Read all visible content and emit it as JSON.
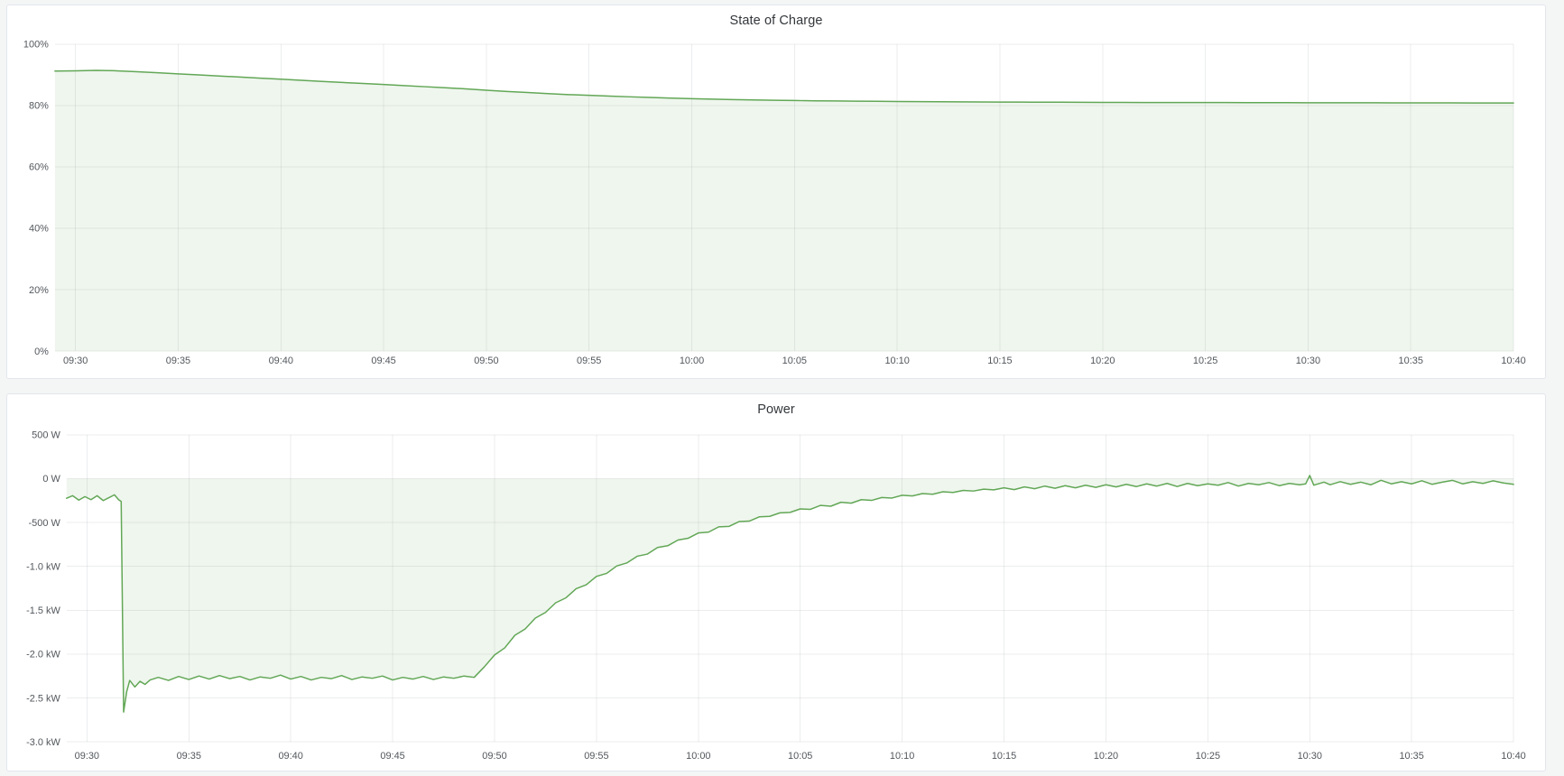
{
  "page": {
    "background_color": "#f4f5f5",
    "panel_background": "#ffffff",
    "panel_border_color": "#e3e7ec",
    "accent_green": "#62a756"
  },
  "chart_data": [
    {
      "type": "area",
      "title": "State of Charge",
      "unit": "percent",
      "grid": true,
      "legend": "none",
      "line_color": "#62a756",
      "fill_color": "rgba(98,167,86,0.10)",
      "xlim_minutes": [
        -1,
        70
      ],
      "ylim": [
        0,
        100
      ],
      "x_tick_minutes": [
        0,
        5,
        10,
        15,
        20,
        25,
        30,
        35,
        40,
        45,
        50,
        55,
        60,
        65,
        70
      ],
      "x_tick_labels": [
        "09:30",
        "09:35",
        "09:40",
        "09:45",
        "09:50",
        "09:55",
        "10:00",
        "10:05",
        "10:10",
        "10:15",
        "10:20",
        "10:25",
        "10:30",
        "10:35",
        "10:40"
      ],
      "y_tick_values": [
        0,
        20,
        40,
        60,
        80,
        100
      ],
      "y_tick_labels": [
        "0%",
        "20%",
        "40%",
        "60%",
        "80%",
        "100%"
      ],
      "series": [
        {
          "name": "State of Charge",
          "points": [
            [
              -1,
              91.2
            ],
            [
              0,
              91.3
            ],
            [
              1,
              91.4
            ],
            [
              2,
              91.3
            ],
            [
              3,
              91.0
            ],
            [
              4,
              90.65
            ],
            [
              5,
              90.3
            ],
            [
              6,
              89.95
            ],
            [
              7,
              89.6
            ],
            [
              8,
              89.25
            ],
            [
              9,
              88.9
            ],
            [
              10,
              88.55
            ],
            [
              11,
              88.2
            ],
            [
              12,
              87.85
            ],
            [
              13,
              87.5
            ],
            [
              14,
              87.15
            ],
            [
              15,
              86.8
            ],
            [
              16,
              86.45
            ],
            [
              17,
              86.1
            ],
            [
              18,
              85.75
            ],
            [
              19,
              85.4
            ],
            [
              20,
              84.95
            ],
            [
              21,
              84.55
            ],
            [
              22,
              84.2
            ],
            [
              23,
              83.85
            ],
            [
              24,
              83.55
            ],
            [
              25,
              83.3
            ],
            [
              26,
              83.05
            ],
            [
              27,
              82.8
            ],
            [
              28,
              82.6
            ],
            [
              29,
              82.4
            ],
            [
              30,
              82.2
            ],
            [
              31,
              82.05
            ],
            [
              32,
              81.9
            ],
            [
              33,
              81.8
            ],
            [
              34,
              81.7
            ],
            [
              35,
              81.6
            ],
            [
              36,
              81.5
            ],
            [
              37,
              81.45
            ],
            [
              38,
              81.4
            ],
            [
              39,
              81.35
            ],
            [
              40,
              81.3
            ],
            [
              41,
              81.25
            ],
            [
              42,
              81.2
            ],
            [
              43,
              81.17
            ],
            [
              44,
              81.14
            ],
            [
              45,
              81.11
            ],
            [
              46,
              81.08
            ],
            [
              47,
              81.06
            ],
            [
              48,
              81.04
            ],
            [
              49,
              81.02
            ],
            [
              50,
              81.0
            ],
            [
              51,
              80.99
            ],
            [
              52,
              80.97
            ],
            [
              53,
              80.96
            ],
            [
              54,
              80.95
            ],
            [
              55,
              80.94
            ],
            [
              56,
              80.93
            ],
            [
              57,
              80.92
            ],
            [
              58,
              80.91
            ],
            [
              59,
              80.9
            ],
            [
              60,
              80.89
            ],
            [
              61,
              80.88
            ],
            [
              62,
              80.87
            ],
            [
              63,
              80.87
            ],
            [
              64,
              80.86
            ],
            [
              65,
              80.86
            ],
            [
              66,
              80.85
            ],
            [
              67,
              80.84
            ],
            [
              68,
              80.83
            ],
            [
              69,
              80.82
            ],
            [
              70,
              80.81
            ]
          ]
        }
      ]
    },
    {
      "type": "area",
      "title": "Power",
      "unit": "watt",
      "grid": true,
      "legend": "none",
      "line_color": "#62a756",
      "fill_color": "rgba(98,167,86,0.10)",
      "xlim_minutes": [
        -1,
        70
      ],
      "ylim": [
        -3000,
        500
      ],
      "x_tick_minutes": [
        0,
        5,
        10,
        15,
        20,
        25,
        30,
        35,
        40,
        45,
        50,
        55,
        60,
        65,
        70
      ],
      "x_tick_labels": [
        "09:30",
        "09:35",
        "09:40",
        "09:45",
        "09:50",
        "09:55",
        "10:00",
        "10:05",
        "10:10",
        "10:15",
        "10:20",
        "10:25",
        "10:30",
        "10:35",
        "10:40"
      ],
      "y_tick_values": [
        500,
        0,
        -500,
        -1000,
        -1500,
        -2000,
        -2500,
        -3000
      ],
      "y_tick_labels": [
        "500 W",
        "0 W",
        "-500 W",
        "-1.0 kW",
        "-1.5 kW",
        "-2.0 kW",
        "-2.5 kW",
        "-3.0 kW"
      ],
      "series": [
        {
          "name": "Power",
          "points": [
            [
              -1,
              -225
            ],
            [
              -0.7,
              -195
            ],
            [
              -0.4,
              -245
            ],
            [
              -0.1,
              -205
            ],
            [
              0.2,
              -240
            ],
            [
              0.5,
              -195
            ],
            [
              0.8,
              -250
            ],
            [
              1.1,
              -215
            ],
            [
              1.35,
              -185
            ],
            [
              1.55,
              -240
            ],
            [
              1.68,
              -260
            ],
            [
              1.8,
              -2660
            ],
            [
              1.95,
              -2430
            ],
            [
              2.1,
              -2300
            ],
            [
              2.35,
              -2375
            ],
            [
              2.6,
              -2310
            ],
            [
              2.85,
              -2345
            ],
            [
              3.1,
              -2295
            ],
            [
              3.5,
              -2265
            ],
            [
              4,
              -2300
            ],
            [
              4.5,
              -2255
            ],
            [
              5,
              -2290
            ],
            [
              5.5,
              -2250
            ],
            [
              6,
              -2285
            ],
            [
              6.5,
              -2245
            ],
            [
              7,
              -2280
            ],
            [
              7.5,
              -2255
            ],
            [
              8,
              -2295
            ],
            [
              8.5,
              -2260
            ],
            [
              9,
              -2275
            ],
            [
              9.5,
              -2240
            ],
            [
              10,
              -2285
            ],
            [
              10.5,
              -2255
            ],
            [
              11,
              -2295
            ],
            [
              11.5,
              -2265
            ],
            [
              12,
              -2280
            ],
            [
              12.5,
              -2245
            ],
            [
              13,
              -2290
            ],
            [
              13.5,
              -2260
            ],
            [
              14,
              -2275
            ],
            [
              14.5,
              -2250
            ],
            [
              15,
              -2295
            ],
            [
              15.5,
              -2265
            ],
            [
              16,
              -2285
            ],
            [
              16.5,
              -2255
            ],
            [
              17,
              -2290
            ],
            [
              17.5,
              -2260
            ],
            [
              18,
              -2275
            ],
            [
              18.5,
              -2250
            ],
            [
              19,
              -2265
            ],
            [
              19.5,
              -2145
            ],
            [
              20,
              -2010
            ],
            [
              20.5,
              -1930
            ],
            [
              21,
              -1785
            ],
            [
              21.5,
              -1715
            ],
            [
              22,
              -1590
            ],
            [
              22.5,
              -1525
            ],
            [
              23,
              -1415
            ],
            [
              23.5,
              -1360
            ],
            [
              24,
              -1255
            ],
            [
              24.5,
              -1210
            ],
            [
              25,
              -1115
            ],
            [
              25.5,
              -1080
            ],
            [
              26,
              -995
            ],
            [
              26.5,
              -960
            ],
            [
              27,
              -885
            ],
            [
              27.5,
              -860
            ],
            [
              28,
              -785
            ],
            [
              28.5,
              -765
            ],
            [
              29,
              -700
            ],
            [
              29.5,
              -680
            ],
            [
              30,
              -620
            ],
            [
              30.5,
              -610
            ],
            [
              31,
              -550
            ],
            [
              31.5,
              -545
            ],
            [
              32,
              -490
            ],
            [
              32.5,
              -485
            ],
            [
              33,
              -435
            ],
            [
              33.5,
              -430
            ],
            [
              34,
              -390
            ],
            [
              34.5,
              -385
            ],
            [
              35,
              -345
            ],
            [
              35.5,
              -350
            ],
            [
              36,
              -305
            ],
            [
              36.5,
              -315
            ],
            [
              37,
              -270
            ],
            [
              37.5,
              -280
            ],
            [
              38,
              -240
            ],
            [
              38.5,
              -248
            ],
            [
              39,
              -215
            ],
            [
              39.5,
              -222
            ],
            [
              40,
              -190
            ],
            [
              40.5,
              -198
            ],
            [
              41,
              -170
            ],
            [
              41.5,
              -178
            ],
            [
              42,
              -150
            ],
            [
              42.5,
              -158
            ],
            [
              43,
              -135
            ],
            [
              43.5,
              -142
            ],
            [
              44,
              -120
            ],
            [
              44.5,
              -128
            ],
            [
              45,
              -105
            ],
            [
              45.5,
              -125
            ],
            [
              46,
              -95
            ],
            [
              46.5,
              -115
            ],
            [
              47,
              -85
            ],
            [
              47.5,
              -110
            ],
            [
              48,
              -80
            ],
            [
              48.5,
              -105
            ],
            [
              49,
              -75
            ],
            [
              49.5,
              -100
            ],
            [
              50,
              -70
            ],
            [
              50.5,
              -95
            ],
            [
              51,
              -65
            ],
            [
              51.5,
              -90
            ],
            [
              52,
              -60
            ],
            [
              52.5,
              -85
            ],
            [
              53,
              -55
            ],
            [
              53.5,
              -90
            ],
            [
              54,
              -55
            ],
            [
              54.5,
              -80
            ],
            [
              55,
              -60
            ],
            [
              55.5,
              -75
            ],
            [
              56,
              -45
            ],
            [
              56.5,
              -85
            ],
            [
              57,
              -55
            ],
            [
              57.5,
              -70
            ],
            [
              58,
              -45
            ],
            [
              58.5,
              -80
            ],
            [
              59,
              -55
            ],
            [
              59.5,
              -70
            ],
            [
              59.8,
              -60
            ],
            [
              60,
              35
            ],
            [
              60.2,
              -75
            ],
            [
              60.7,
              -40
            ],
            [
              61,
              -70
            ],
            [
              61.5,
              -35
            ],
            [
              62,
              -65
            ],
            [
              62.5,
              -40
            ],
            [
              63,
              -70
            ],
            [
              63.5,
              -20
            ],
            [
              64,
              -60
            ],
            [
              64.5,
              -35
            ],
            [
              65,
              -60
            ],
            [
              65.5,
              -25
            ],
            [
              66,
              -65
            ],
            [
              66.5,
              -40
            ],
            [
              67,
              -20
            ],
            [
              67.5,
              -60
            ],
            [
              68,
              -35
            ],
            [
              68.5,
              -55
            ],
            [
              69,
              -25
            ],
            [
              69.5,
              -50
            ],
            [
              70,
              -65
            ]
          ]
        }
      ]
    }
  ]
}
